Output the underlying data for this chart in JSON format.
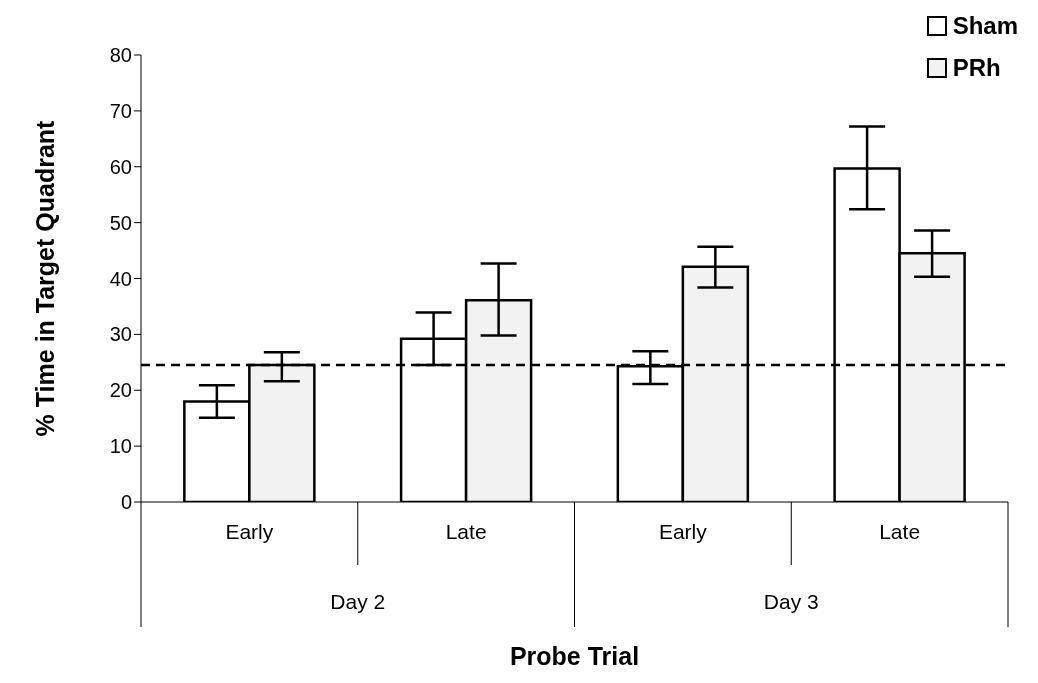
{
  "chart_data": {
    "type": "bar",
    "xlabel": "Probe Trial",
    "ylabel": "% Time in Target Quadrant",
    "categories": [
      "Early",
      "Late",
      "Early",
      "Late"
    ],
    "annotations": [
      "Day 2",
      "Day 3"
    ],
    "series": [
      {
        "name": "Sham",
        "color": "#ffffff",
        "values": [
          18,
          29.2,
          24.3,
          59.7
        ],
        "errors": [
          [
            15.1,
            20.9
          ],
          [
            24.5,
            33.9
          ],
          [
            21.1,
            27
          ],
          [
            52.4,
            67.2
          ]
        ]
      },
      {
        "name": "PRh",
        "color": "#f2f2f2",
        "values": [
          24.5,
          36.1,
          42.1,
          44.5
        ],
        "errors": [
          [
            21.6,
            26.8
          ],
          [
            29.8,
            42.7
          ],
          [
            38.4,
            45.7
          ],
          [
            40.3,
            48.6
          ]
        ]
      }
    ],
    "ylim": [
      0,
      80
    ],
    "yticks": [
      0,
      10,
      20,
      30,
      40,
      50,
      60,
      70,
      80
    ],
    "ref_lines": [
      {
        "axis": "y",
        "value": 24.5,
        "line_style": "dashed",
        "color": "#000000"
      }
    ],
    "grid": false,
    "legend": "top right"
  }
}
